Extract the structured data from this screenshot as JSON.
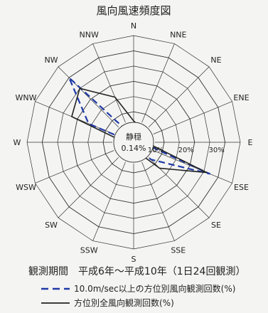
{
  "chart_data": {
    "type": "radar",
    "title": "風向風速頻度図",
    "directions": [
      "N",
      "NNE",
      "NE",
      "ENE",
      "E",
      "ESE",
      "SE",
      "SSE",
      "S",
      "SSW",
      "SW",
      "WSW",
      "W",
      "WNW",
      "NW",
      "NNW"
    ],
    "ring_labels": [
      "10%",
      "20%",
      "30%"
    ],
    "rmax": 35,
    "calm": {
      "label": "静穏",
      "value": "0.14%"
    },
    "series": [
      {
        "name": "10.0m/sec以上の方位別風向観測回数(%)",
        "color": "#1f3aa8",
        "dash": true,
        "values": [
          0.5,
          0.5,
          0.5,
          0.5,
          2.5,
          27,
          8,
          0.5,
          0.5,
          0.5,
          0.5,
          0.5,
          0.5,
          16,
          30,
          3
        ]
      },
      {
        "name": "方位別全風向観測回数(%)",
        "color": "#222222",
        "dash": false,
        "values": [
          7,
          5.5,
          4.5,
          3,
          4,
          26,
          12,
          3.5,
          2.5,
          3,
          2.5,
          3,
          3,
          22,
          25,
          16
        ]
      }
    ]
  },
  "footer": {
    "period": "観測期間　平成6年～平成10年（1日24回観測）"
  }
}
